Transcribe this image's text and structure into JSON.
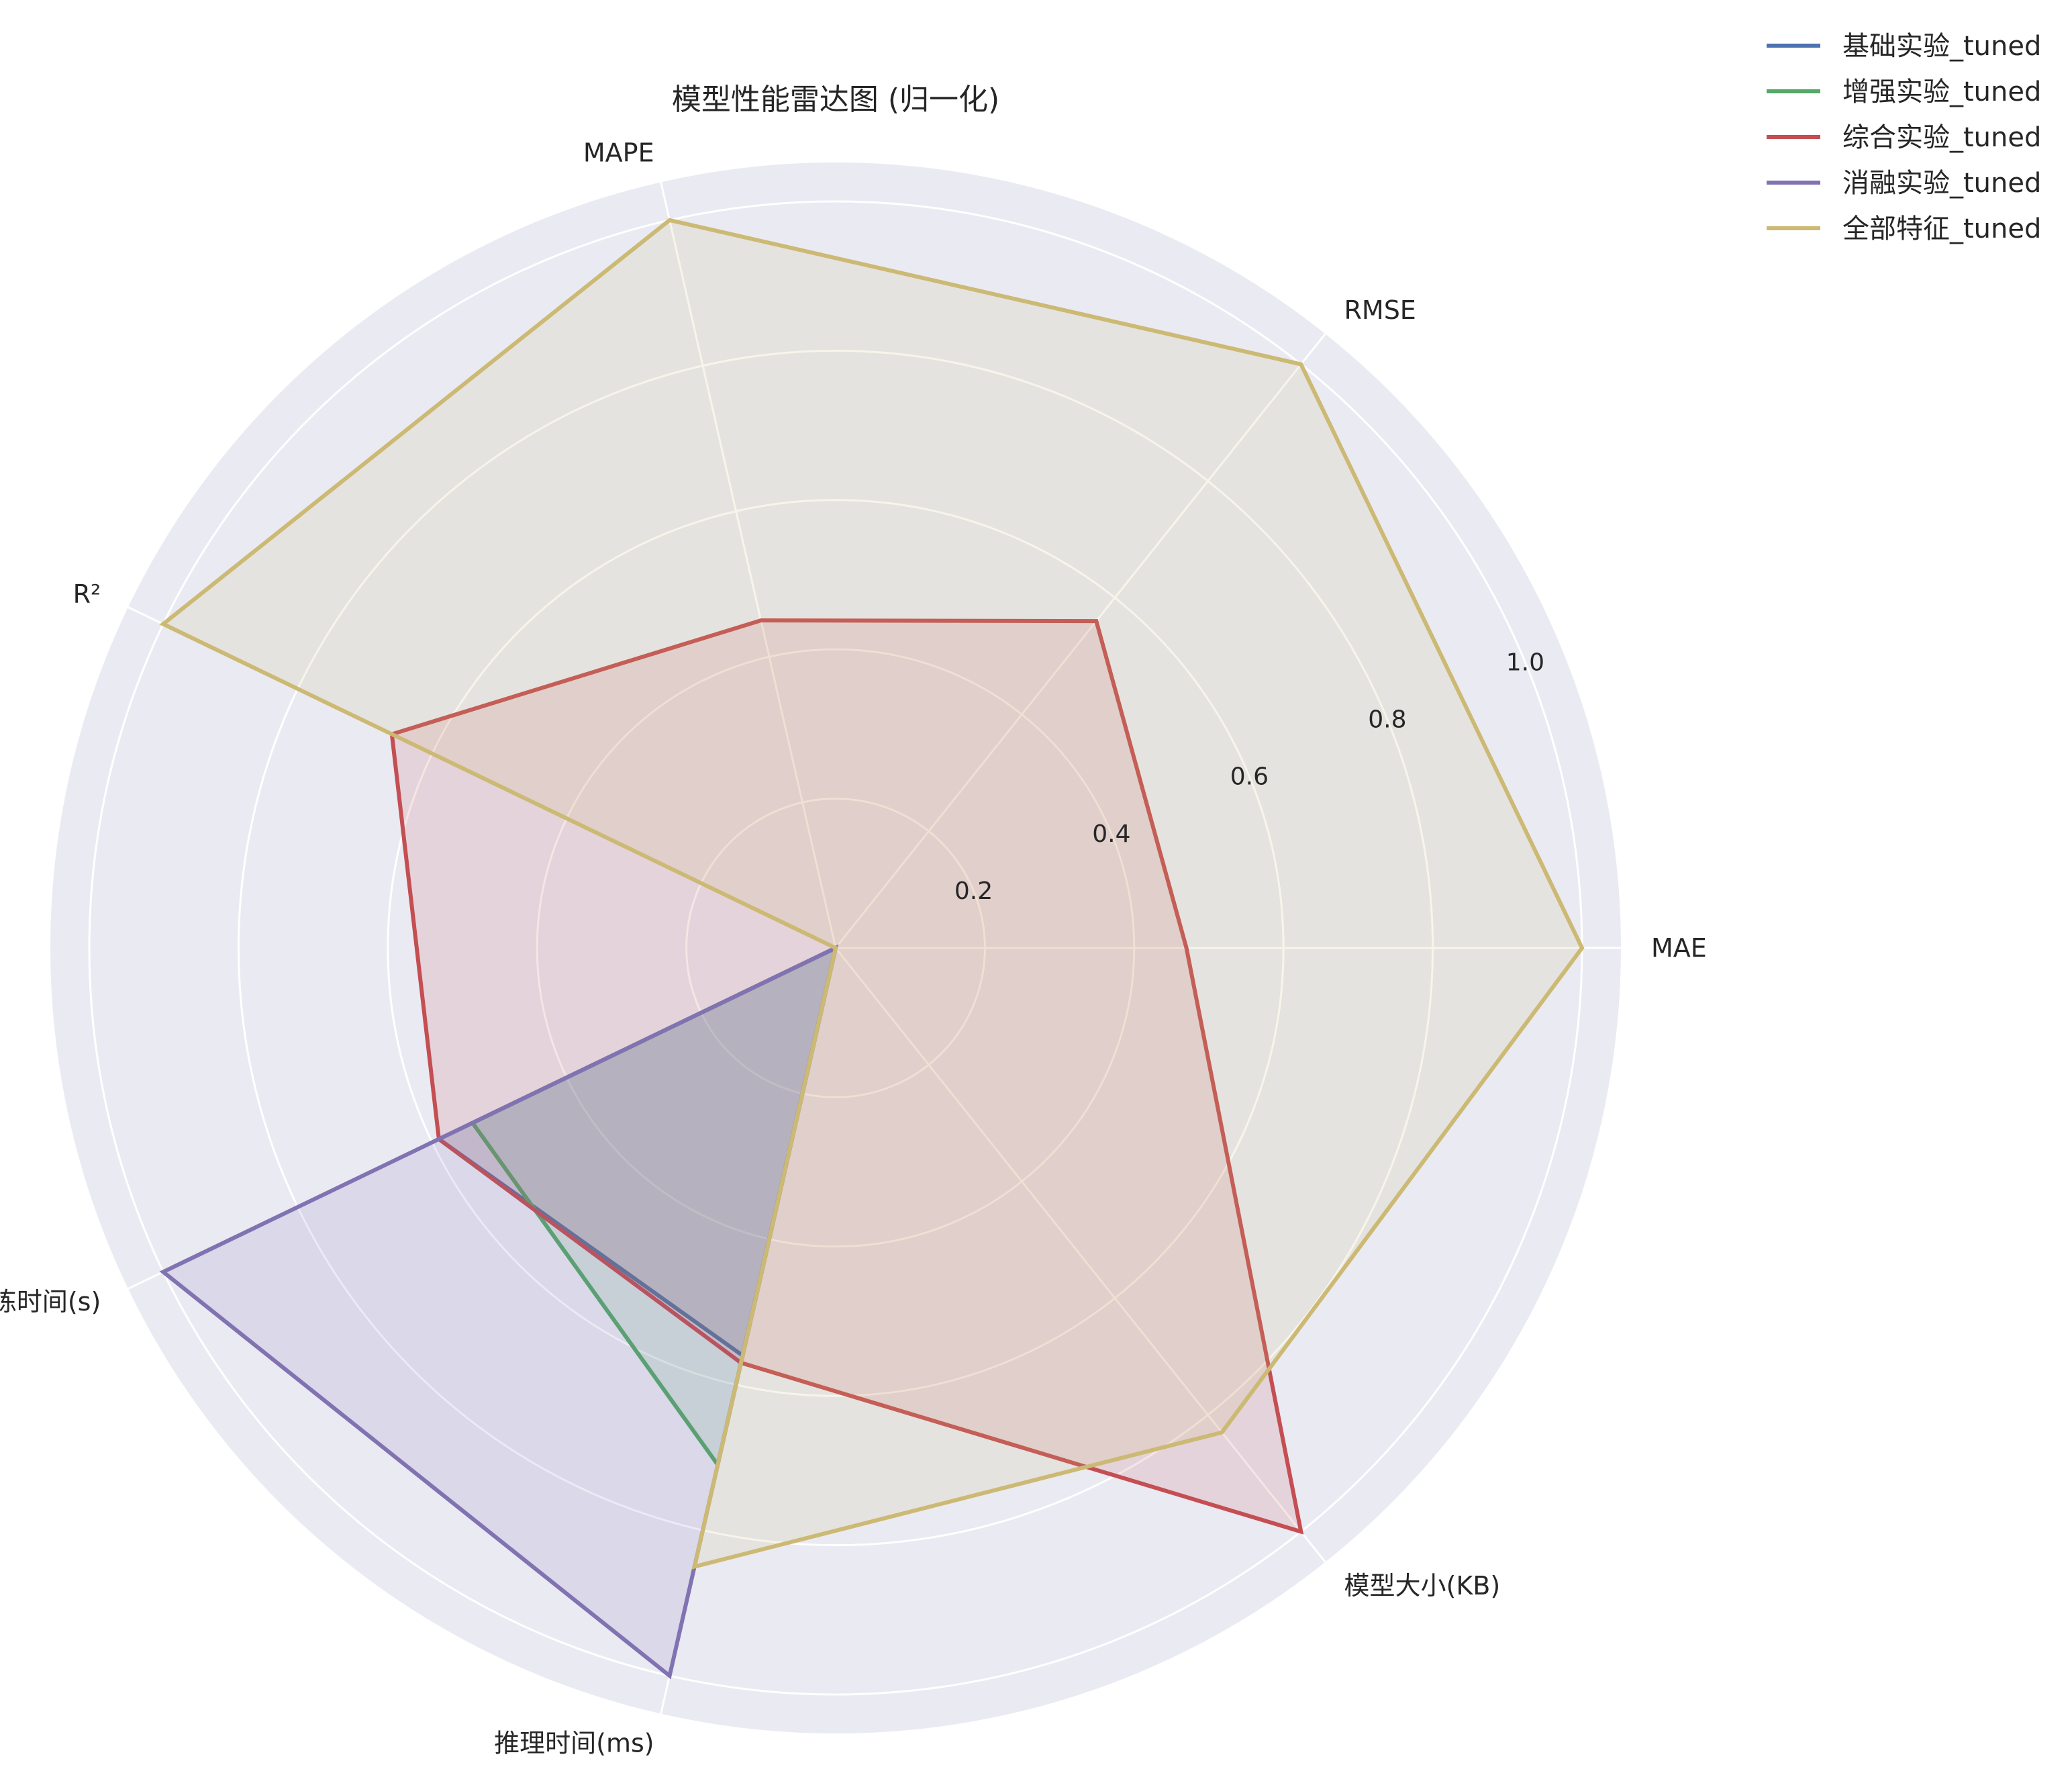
{
  "chart_data": {
    "type": "radar",
    "title": "模型性能雷达图 (归一化)",
    "axes": [
      "MAE",
      "RMSE",
      "MAPE",
      "R²",
      "训练时间(s)",
      "推理时间(ms)",
      "模型大小(KB)"
    ],
    "rlim": [
      0,
      1.0
    ],
    "rticks": [
      0.2,
      0.4,
      0.6,
      0.8,
      1.0
    ],
    "rtick_labels": [
      "0.2",
      "0.4",
      "0.6",
      "0.8",
      "1.0"
    ],
    "grid": true,
    "legend_position": "top-right",
    "series": [
      {
        "name": "基础实验_tuned",
        "color": "#4c72b0",
        "values": [
          0,
          0,
          0,
          0,
          0.59,
          0.56,
          0
        ]
      },
      {
        "name": "增强实验_tuned",
        "color": "#55a868",
        "values": [
          0,
          0,
          0,
          0,
          0.54,
          0.71,
          0
        ]
      },
      {
        "name": "综合实验_tuned",
        "color": "#c44e52",
        "values": [
          0.47,
          0.56,
          0.45,
          0.66,
          0.59,
          0.57,
          1.0
        ]
      },
      {
        "name": "消融实验_tuned",
        "color": "#8172b2",
        "values": [
          0,
          0,
          0,
          0,
          1.0,
          1.0,
          0
        ]
      },
      {
        "name": "全部特征_tuned",
        "color": "#ccb974",
        "values": [
          1.0,
          1.0,
          1.0,
          1.0,
          0,
          0.85,
          0.83
        ]
      }
    ]
  }
}
